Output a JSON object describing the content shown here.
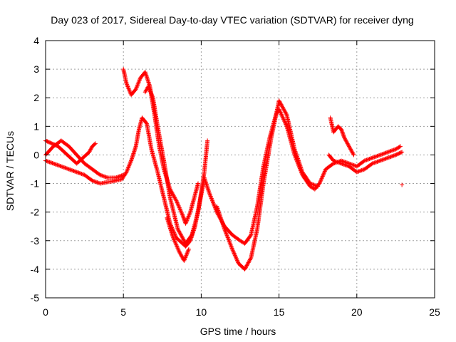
{
  "chart_data": {
    "type": "scatter",
    "title": "Day 023 of 2017, Sidereal Day-to-day VTEC variation (SDTVAR) for receiver dyng",
    "xlabel": "GPS time / hours",
    "ylabel": "SDTVAR / TECUs",
    "xlim": [
      0,
      25
    ],
    "ylim": [
      -5,
      4
    ],
    "x_ticks": [
      "0",
      "5",
      "10",
      "15",
      "20",
      "25"
    ],
    "y_ticks": [
      "4",
      "3",
      "2",
      "1",
      "0",
      "-1",
      "-2",
      "-3",
      "-4",
      "-5"
    ],
    "grid": true,
    "marker": "+",
    "color": "#ff0000",
    "series": [
      {
        "x": [
          0.0,
          0.5,
          1.0,
          1.5,
          2.0,
          2.5,
          3.0,
          3.5,
          4.0,
          4.5,
          4.9,
          5.2,
          5.5,
          5.8,
          6.0,
          6.2,
          6.5,
          6.8,
          7.2,
          7.6,
          8.0,
          8.4,
          8.8,
          9.0,
          9.3,
          9.6,
          10.0,
          10.2,
          10.5,
          11.0,
          11.5,
          12.0,
          12.5,
          12.8,
          13.2,
          13.6,
          14.0,
          14.4,
          14.8,
          15.0,
          15.5,
          16.0,
          16.5,
          17.0,
          17.3,
          17.6,
          18.0,
          18.5,
          19.0,
          19.5,
          20.0,
          20.5,
          21.0,
          21.5,
          22.0,
          22.5,
          22.8
        ],
        "y": [
          -0.2,
          -0.3,
          -0.4,
          -0.5,
          -0.6,
          -0.7,
          -0.9,
          -1.0,
          -0.95,
          -0.9,
          -0.85,
          -0.6,
          -0.2,
          0.3,
          0.9,
          1.3,
          1.1,
          0.2,
          -0.6,
          -1.5,
          -2.4,
          -2.9,
          -3.1,
          -3.2,
          -3.0,
          -2.5,
          -1.4,
          -0.8,
          -1.3,
          -2.0,
          -2.5,
          -2.8,
          -3.0,
          -3.1,
          -2.8,
          -1.8,
          -0.4,
          0.6,
          1.4,
          1.6,
          1.0,
          0.0,
          -0.7,
          -1.1,
          -1.2,
          -1.0,
          -0.5,
          -0.3,
          -0.2,
          -0.3,
          -0.4,
          -0.2,
          -0.1,
          0.0,
          0.1,
          0.2,
          0.3
        ]
      },
      {
        "x": [
          0.0,
          0.4,
          0.8,
          1.2,
          1.6,
          2.0,
          2.4,
          2.8,
          3.0,
          3.2
        ],
        "y": [
          0.5,
          0.4,
          0.3,
          0.1,
          -0.1,
          -0.3,
          -0.1,
          0.1,
          0.3,
          0.4
        ]
      },
      {
        "x": [
          0.0,
          0.5,
          1.0,
          1.5,
          2.0,
          2.5,
          3.0,
          3.5,
          4.0,
          4.5,
          5.0
        ],
        "y": [
          0.0,
          0.3,
          0.5,
          0.3,
          0.0,
          -0.3,
          -0.5,
          -0.7,
          -0.8,
          -0.8,
          -0.7
        ]
      },
      {
        "x": [
          5.0,
          5.2,
          5.5,
          5.8,
          6.1,
          6.4,
          6.7,
          7.0,
          7.3,
          7.6,
          8.0,
          8.4,
          8.8,
          9.0,
          9.3,
          9.6,
          9.8
        ],
        "y": [
          3.0,
          2.5,
          2.1,
          2.3,
          2.7,
          2.9,
          2.4,
          1.4,
          0.3,
          -0.5,
          -1.2,
          -1.6,
          -2.1,
          -2.4,
          -2.0,
          -1.4,
          -1.0
        ]
      },
      {
        "x": [
          6.4,
          6.6,
          6.9,
          7.2,
          7.6,
          8.0,
          8.5,
          9.0,
          9.4,
          9.8,
          10.0,
          10.2,
          10.4
        ],
        "y": [
          2.2,
          2.4,
          2.0,
          1.0,
          -0.2,
          -1.5,
          -2.6,
          -3.1,
          -2.8,
          -2.0,
          -1.3,
          -0.6,
          0.5
        ]
      },
      {
        "x": [
          7.8,
          8.2,
          8.6,
          8.9,
          9.2
        ],
        "y": [
          -2.2,
          -2.9,
          -3.4,
          -3.7,
          -3.3
        ]
      },
      {
        "x": [
          11.0,
          11.5,
          12.0,
          12.4,
          12.8,
          13.2,
          13.6,
          14.0,
          14.5,
          15.0,
          15.5,
          16.0,
          16.5,
          17.0,
          17.5
        ],
        "y": [
          -1.8,
          -2.6,
          -3.3,
          -3.8,
          -4.0,
          -3.6,
          -2.6,
          -1.0,
          0.6,
          1.9,
          1.4,
          0.2,
          -0.6,
          -1.0,
          -1.1
        ]
      },
      {
        "x": [
          18.3,
          18.5,
          18.8,
          19.0,
          19.2,
          19.5,
          19.8
        ],
        "y": [
          1.3,
          0.8,
          1.0,
          0.9,
          0.6,
          0.3,
          0.0
        ]
      },
      {
        "x": [
          18.2,
          18.5,
          19.0,
          19.5,
          20.0,
          20.5,
          21.0,
          21.5,
          22.0,
          22.5,
          22.9
        ],
        "y": [
          0.0,
          -0.2,
          -0.3,
          -0.4,
          -0.6,
          -0.5,
          -0.3,
          -0.2,
          -0.1,
          0.0,
          0.1
        ]
      },
      {
        "x": [
          22.9
        ],
        "y": [
          -1.05
        ]
      }
    ]
  }
}
